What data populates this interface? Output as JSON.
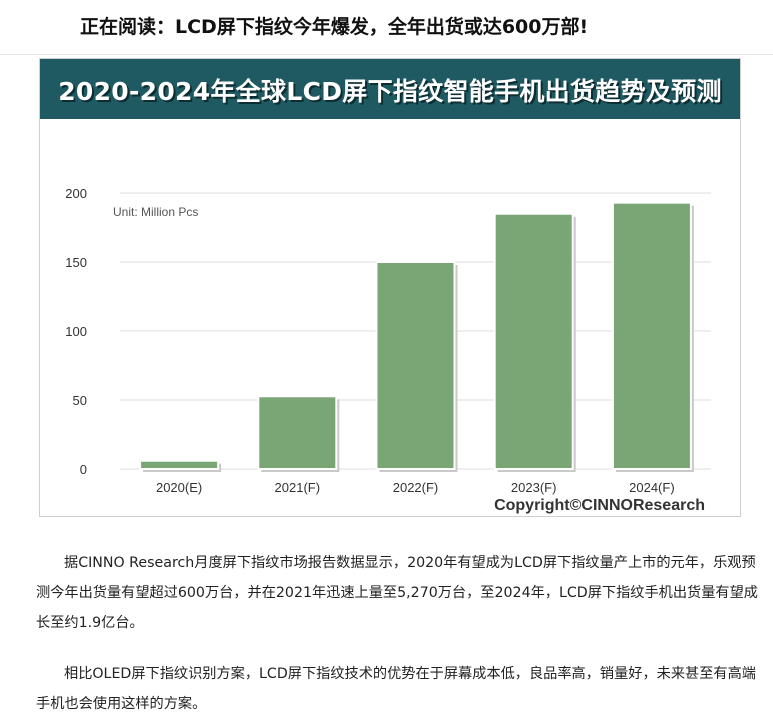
{
  "article": {
    "reading_label": "正在阅读：LCD屏下指纹今年爆发，全年出货或达600万部!",
    "figure_banner": "2020-2024年全球LCD屏下指纹智能手机出货趋势及预测",
    "paragraph_1": "据CINNO Research月度屏下指纹市场报告数据显示，2020年有望成为LCD屏下指纹量产上市的元年，乐观预测今年出货量有望超过600万台，并在2021年迅速上量至5,270万台，至2024年，LCD屏下指纹手机出货量有望成长至约1.9亿台。",
    "paragraph_2": "相比OLED屏下指纹识别方案，LCD屏下指纹技术的优势在于屏幕成本低，良品率高，销量好，未来甚至有高端手机也会使用这样的方案。"
  },
  "chart_data": {
    "type": "bar",
    "title": "",
    "unit_label": "Unit: Million Pcs",
    "watermark": "Copyright©CINNOResearch",
    "categories": [
      "2020(E)",
      "2021(F)",
      "2022(F)",
      "2023(F)",
      "2024(F)"
    ],
    "values": [
      6,
      52.7,
      150,
      185,
      193
    ],
    "ylim": [
      0,
      200
    ],
    "yticks": [
      0,
      50,
      100,
      150,
      200
    ],
    "grid": true,
    "bar_color": "#7aa676",
    "grid_color": "#dddddd"
  },
  "colors": {
    "banner_bg": "#1f5a63",
    "banner_text": "#ffffff"
  }
}
